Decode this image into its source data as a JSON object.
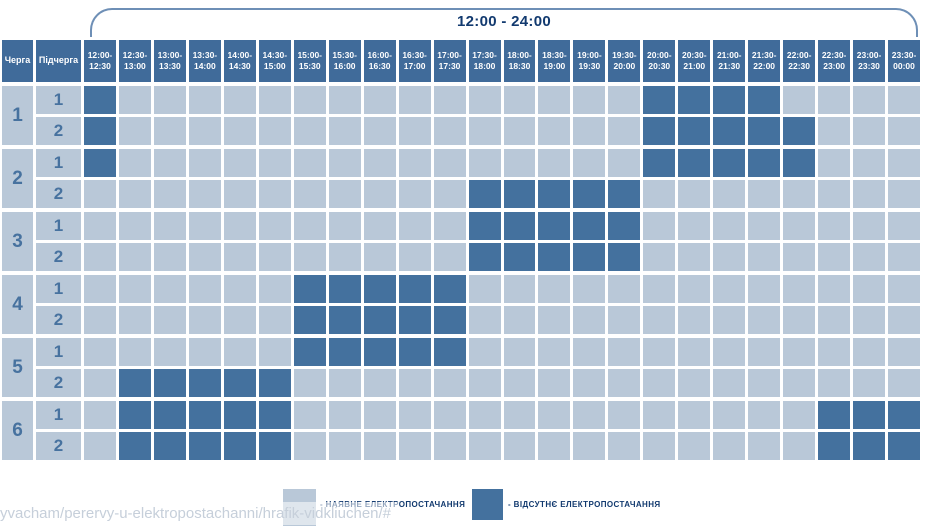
{
  "title": "12:00 - 24:00",
  "table": {
    "cherha_header": "Черга",
    "pidcherha_header": "Підчерга",
    "time_slots": [
      {
        "l1": "12:00-",
        "l2": "12:30"
      },
      {
        "l1": "12:30-",
        "l2": "13:00"
      },
      {
        "l1": "13:00-",
        "l2": "13:30"
      },
      {
        "l1": "13:30-",
        "l2": "14:00"
      },
      {
        "l1": "14:00-",
        "l2": "14:30"
      },
      {
        "l1": "14:30-",
        "l2": "15:00"
      },
      {
        "l1": "15:00-",
        "l2": "15:30"
      },
      {
        "l1": "15:30-",
        "l2": "16:00"
      },
      {
        "l1": "16:00-",
        "l2": "16:30"
      },
      {
        "l1": "16:30-",
        "l2": "17:00"
      },
      {
        "l1": "17:00-",
        "l2": "17:30"
      },
      {
        "l1": "17:30-",
        "l2": "18:00"
      },
      {
        "l1": "18:00-",
        "l2": "18:30"
      },
      {
        "l1": "18:30-",
        "l2": "19:00"
      },
      {
        "l1": "19:00-",
        "l2": "19:30"
      },
      {
        "l1": "19:30-",
        "l2": "20:00"
      },
      {
        "l1": "20:00-",
        "l2": "20:30"
      },
      {
        "l1": "20:30-",
        "l2": "21:00"
      },
      {
        "l1": "21:00-",
        "l2": "21:30"
      },
      {
        "l1": "21:30-",
        "l2": "22:00"
      },
      {
        "l1": "22:00-",
        "l2": "22:30"
      },
      {
        "l1": "22:30-",
        "l2": "23:00"
      },
      {
        "l1": "23:00-",
        "l2": "23:30"
      },
      {
        "l1": "23:30-",
        "l2": "00:00"
      }
    ]
  },
  "groups": [
    {
      "cherha": "1",
      "rows": [
        {
          "pidcherha": "1",
          "outage_slots": [
            1,
            17,
            18,
            19,
            20
          ]
        },
        {
          "pidcherha": "2",
          "outage_slots": [
            1,
            17,
            18,
            19,
            20,
            21
          ]
        }
      ]
    },
    {
      "cherha": "2",
      "rows": [
        {
          "pidcherha": "1",
          "outage_slots": [
            1,
            17,
            18,
            19,
            20,
            21
          ]
        },
        {
          "pidcherha": "2",
          "outage_slots": [
            12,
            13,
            14,
            15,
            16
          ]
        }
      ]
    },
    {
      "cherha": "3",
      "rows": [
        {
          "pidcherha": "1",
          "outage_slots": [
            12,
            13,
            14,
            15,
            16
          ]
        },
        {
          "pidcherha": "2",
          "outage_slots": [
            12,
            13,
            14,
            15,
            16
          ]
        }
      ]
    },
    {
      "cherha": "4",
      "rows": [
        {
          "pidcherha": "1",
          "outage_slots": [
            7,
            8,
            9,
            10,
            11
          ]
        },
        {
          "pidcherha": "2",
          "outage_slots": [
            7,
            8,
            9,
            10,
            11
          ]
        }
      ]
    },
    {
      "cherha": "5",
      "rows": [
        {
          "pidcherha": "1",
          "outage_slots": [
            7,
            8,
            9,
            10,
            11
          ]
        },
        {
          "pidcherha": "2",
          "outage_slots": [
            2,
            3,
            4,
            5,
            6
          ]
        }
      ]
    },
    {
      "cherha": "6",
      "rows": [
        {
          "pidcherha": "1",
          "outage_slots": [
            2,
            3,
            4,
            5,
            6,
            22,
            23,
            24
          ]
        },
        {
          "pidcherha": "2",
          "outage_slots": [
            2,
            3,
            4,
            5,
            6,
            22,
            23,
            24
          ]
        }
      ]
    }
  ],
  "legend": {
    "available_label": "- НАЯВНЕ ЕЛЕКТРОПОСТАЧАННЯ",
    "outage_label": "- ВІДСУТНЄ ЕЛЕКТРОПОСТАЧАННЯ"
  },
  "status_url": "yvacham/perervy-u-elektropostachanni/hrafik-vidkliuchen/#",
  "colors": {
    "outage": "#44719e",
    "available": "#b9c8d8",
    "header_bg": "#406b9a",
    "title_text": "#123a6f",
    "label_text": "#47729f",
    "brace_line": "#6e8fb6",
    "url_text": "#c6cfda"
  }
}
